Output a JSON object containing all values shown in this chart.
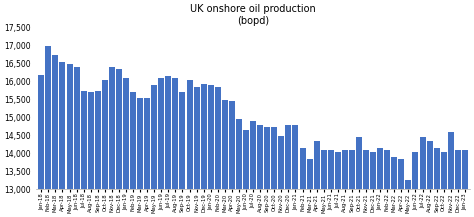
{
  "title": "UK onshore oil production\n(bopd)",
  "bar_color": "#4472C4",
  "ylim": [
    13000,
    17500
  ],
  "yticks": [
    13000,
    13500,
    14000,
    14500,
    15000,
    15500,
    16000,
    16500,
    17000,
    17500
  ],
  "labels": [
    "Jan-18",
    "Feb-18",
    "Mar-18",
    "Apr-18",
    "May-18",
    "Jun-18",
    "Jul-18",
    "Aug-18",
    "Sep-18",
    "Oct-18",
    "Nov-18",
    "Dec-18",
    "Jan-19",
    "Feb-19",
    "Mar-19",
    "Apr-19",
    "May-19",
    "Jun-19",
    "Jul-19",
    "Aug-19",
    "Sep-19",
    "Oct-19",
    "Nov-19",
    "Dec-19",
    "Jan-20",
    "Feb-20",
    "Mar-20",
    "Apr-20",
    "May-20",
    "Jun-20",
    "Jul-20",
    "Aug-20",
    "Sep-20",
    "Oct-20",
    "Nov-20",
    "Dec-20",
    "Jan-21",
    "Feb-21",
    "Mar-21",
    "Apr-21",
    "May-21",
    "Jun-21",
    "Jul-21",
    "Aug-21",
    "Sep-21",
    "Oct-21",
    "Nov-21",
    "Dec-21",
    "Jan-22",
    "Feb-22",
    "Mar-22",
    "Apr-22",
    "May-22",
    "Jun-22",
    "Jul-22",
    "Aug-22",
    "Sep-22",
    "Oct-22",
    "Nov-22",
    "Dec-22",
    "Jan-23"
  ],
  "values": [
    16200,
    17000,
    16750,
    16550,
    16500,
    16400,
    15750,
    15700,
    15750,
    16050,
    16400,
    16350,
    16100,
    15700,
    15550,
    15550,
    15900,
    16100,
    16150,
    16100,
    15700,
    16050,
    15850,
    15950,
    15900,
    15850,
    15500,
    15450,
    14950,
    14650,
    14900,
    14800,
    14750,
    14750,
    14500,
    14800,
    14800,
    14150,
    13850,
    14350,
    14100,
    14100,
    14050,
    14100,
    14100,
    14450,
    14100,
    14050,
    14150,
    14100,
    13900,
    13850,
    13250,
    14050,
    14450,
    14350,
    14150,
    14050,
    14600,
    14100,
    14100
  ],
  "title_fontsize": 7,
  "ylabel_fontsize": 5.5,
  "xlabel_fontsize": 3.8
}
